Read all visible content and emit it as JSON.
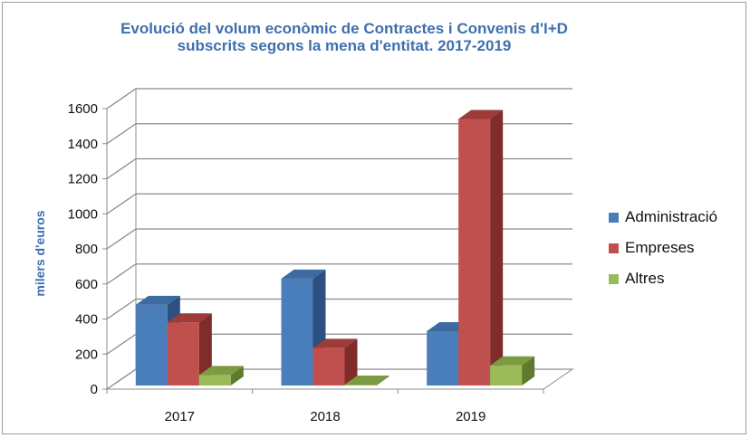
{
  "chart_data": {
    "type": "bar",
    "title_line1": "Evolució del volum econòmic de Contractes i Convenis d'I+D",
    "title_line2": "subscrits segons la mena d'entitat. 2017-2019",
    "xlabel": "",
    "ylabel": "milers d'euros",
    "ylim": [
      0,
      1600
    ],
    "yticks": [
      0,
      200,
      400,
      600,
      800,
      1000,
      1200,
      1400,
      1600
    ],
    "categories": [
      "2017",
      "2018",
      "2019"
    ],
    "series": [
      {
        "name": "Administració",
        "values": [
          460,
          610,
          310
        ],
        "color": "#4a7ebb",
        "top": "#3e6aa2",
        "side": "#2d5080"
      },
      {
        "name": "Empreses",
        "values": [
          360,
          215,
          1520
        ],
        "color": "#c0504d",
        "top": "#9c3b39",
        "side": "#7f2c2a"
      },
      {
        "name": "Altres",
        "values": [
          60,
          5,
          115
        ],
        "color": "#9bbb59",
        "top": "#7c9a3f",
        "side": "#5f7a2c"
      }
    ],
    "grid": true,
    "legend_position": "right",
    "style": "3d-clustered-column"
  }
}
